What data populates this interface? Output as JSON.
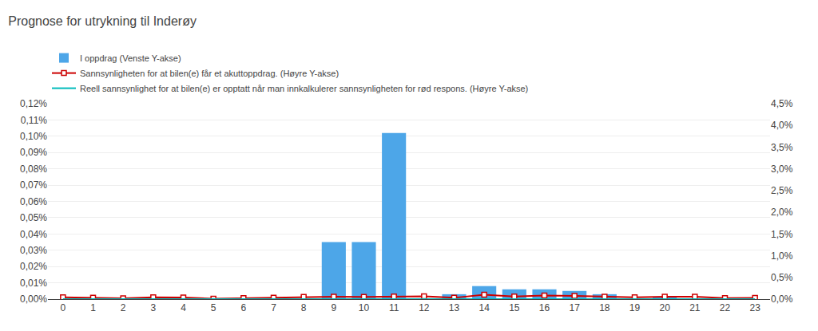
{
  "chart_data": {
    "type": "bar",
    "title": "Prognose for utrykning til Inderøy",
    "x": [
      0,
      1,
      2,
      3,
      4,
      5,
      6,
      7,
      8,
      9,
      10,
      11,
      12,
      13,
      14,
      15,
      16,
      17,
      18,
      19,
      20,
      21,
      22,
      23
    ],
    "xlim": [
      -0.5,
      23.5
    ],
    "xticks": [
      0,
      1,
      2,
      3,
      4,
      5,
      6,
      7,
      8,
      9,
      10,
      11,
      12,
      13,
      14,
      15,
      16,
      17,
      18,
      19,
      20,
      21,
      22,
      23
    ],
    "ylim": [
      0,
      0.12
    ],
    "yticks": [
      {
        "value": 0.0,
        "label": "0,00%"
      },
      {
        "value": 0.01,
        "label": "0,01%"
      },
      {
        "value": 0.02,
        "label": "0,02%"
      },
      {
        "value": 0.03,
        "label": "0,03%"
      },
      {
        "value": 0.04,
        "label": "0,04%"
      },
      {
        "value": 0.05,
        "label": "0,05%"
      },
      {
        "value": 0.06,
        "label": "0,06%"
      },
      {
        "value": 0.07,
        "label": "0,07%"
      },
      {
        "value": 0.08,
        "label": "0,08%"
      },
      {
        "value": 0.09,
        "label": "0,09%"
      },
      {
        "value": 0.1,
        "label": "0,10%"
      },
      {
        "value": 0.11,
        "label": "0,11%"
      },
      {
        "value": 0.12,
        "label": "0,12%"
      }
    ],
    "y2lim": [
      0,
      4.5
    ],
    "y2ticks": [
      {
        "value": 0.0,
        "label": "0,0%"
      },
      {
        "value": 0.5,
        "label": "0,5%"
      },
      {
        "value": 1.0,
        "label": "1,0%"
      },
      {
        "value": 1.5,
        "label": "1,5%"
      },
      {
        "value": 2.0,
        "label": "2,0%"
      },
      {
        "value": 2.5,
        "label": "2,5%"
      },
      {
        "value": 3.0,
        "label": "3,0%"
      },
      {
        "value": 3.5,
        "label": "3,5%"
      },
      {
        "value": 4.0,
        "label": "4,0%"
      },
      {
        "value": 4.5,
        "label": "4,5%"
      }
    ],
    "grid": true,
    "legend": "top",
    "series": [
      {
        "name": "I oppdrag (Venste Y-akse)",
        "type": "bar",
        "color": "#4da6e8",
        "values": [
          0.0,
          0.0,
          0.0,
          0.0,
          0.0,
          0.0,
          0.0,
          0.0,
          0.0,
          0.035,
          0.035,
          0.102,
          0.0,
          0.003,
          0.008,
          0.006,
          0.006,
          0.005,
          0.003,
          0.0,
          0.001,
          0.0,
          0.0,
          0.0
        ]
      },
      {
        "name": "Sannsynligheten for at bilen(e) får et akuttoppdrag. (Høyre Y-akse)",
        "type": "line",
        "axis": "y2",
        "color": "#cc0000",
        "marker": "square",
        "values": [
          0.04,
          0.03,
          0.02,
          0.041,
          0.035,
          0.01,
          0.023,
          0.03,
          0.05,
          0.053,
          0.051,
          0.06,
          0.063,
          0.03,
          0.101,
          0.06,
          0.083,
          0.073,
          0.057,
          0.04,
          0.055,
          0.055,
          0.021,
          0.028
        ]
      },
      {
        "name": "Reell sannsynlighet for at bilen(e) er opptatt når man innkalkulerer sannsynligheten for rød respons. (Høyre Y-akse)",
        "type": "line",
        "axis": "y2",
        "color": "#00bbbb",
        "line_style": "solid",
        "values": [
          0.0,
          0.0,
          0.0,
          0.0,
          0.0,
          0.0,
          0.0,
          0.0,
          0.0,
          0.0,
          0.0,
          0.0,
          0.0,
          0.0,
          0.0,
          0.0,
          0.0,
          0.0,
          0.0,
          0.0,
          0.0,
          0.0,
          0.0,
          0.0
        ]
      }
    ]
  }
}
